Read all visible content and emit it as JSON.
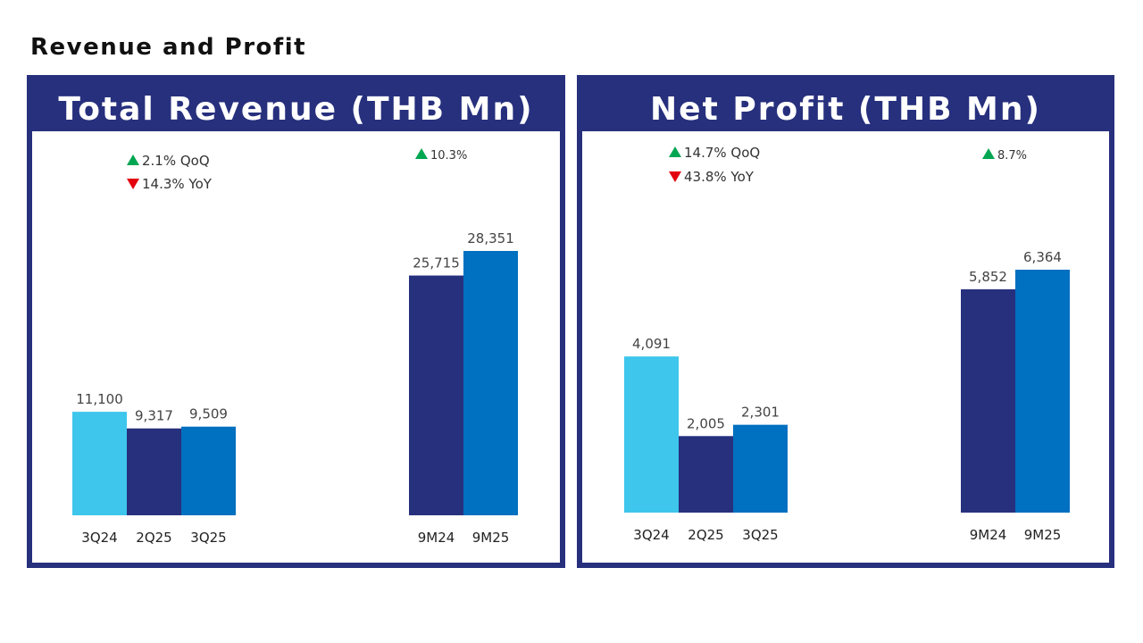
{
  "page": {
    "title": "Revenue and Profit"
  },
  "colors": {
    "panel": "#27307d",
    "light_blue": "#3ec6ec",
    "navy": "#27307d",
    "blue": "#0070c0",
    "up": "#00a651",
    "down": "#e3000f"
  },
  "chart_data": [
    {
      "type": "bar",
      "title": "Total Revenue (THB Mn)",
      "categories": [
        "3Q24",
        "2Q25",
        "3Q25",
        "9M24",
        "9M25"
      ],
      "values": [
        11100,
        9317,
        9509,
        25715,
        28351
      ],
      "data_labels": [
        "11,100",
        "9,317",
        "9,509",
        "25,715",
        "28,351"
      ],
      "bar_colors": [
        "light_blue",
        "navy",
        "blue",
        "navy",
        "blue"
      ],
      "ylim": [
        0,
        28351
      ],
      "annotations": {
        "qoq": "2.1% QoQ",
        "yoy": "14.3% YoY",
        "nine_month": "10.3%"
      }
    },
    {
      "type": "bar",
      "title": "Net Profit (THB Mn)",
      "categories": [
        "3Q24",
        "2Q25",
        "3Q25",
        "9M24",
        "9M25"
      ],
      "values": [
        4091,
        2005,
        2301,
        5852,
        6364
      ],
      "data_labels": [
        "4,091",
        "2,005",
        "2,301",
        "5,852",
        "6,364"
      ],
      "bar_colors": [
        "light_blue",
        "navy",
        "blue",
        "navy",
        "blue"
      ],
      "ylim": [
        0,
        6364
      ],
      "annotations": {
        "qoq": "14.7% QoQ",
        "yoy": "43.8% YoY",
        "nine_month": "8.7%"
      }
    }
  ]
}
